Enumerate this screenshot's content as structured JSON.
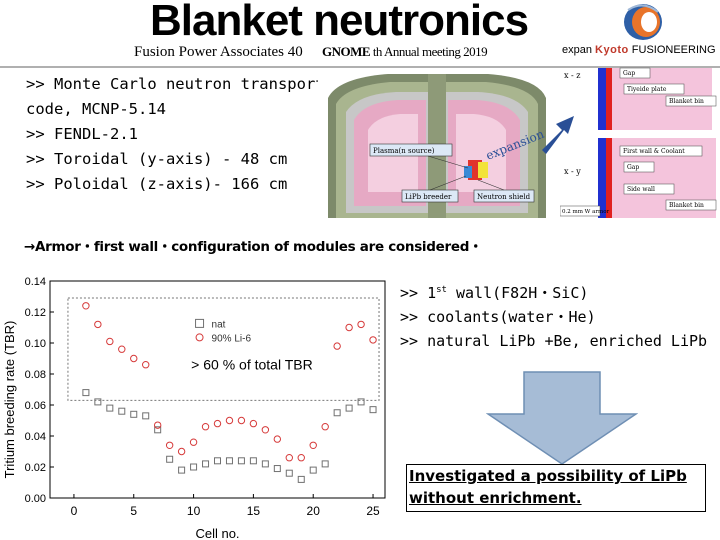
{
  "header": {
    "title": "Blanket neutronics",
    "subtitle": "Fusion Power Associates 40",
    "subtitle_overlay": "th Annual meeting 2019",
    "overlay_tag": "GNOME",
    "expan_label": "expan"
  },
  "logo": {
    "brand_k": "Kyoto",
    "brand_rest": "FUSIONEERING"
  },
  "bullets_top": [
    ">>  Monte Carlo neutron transport",
    "code, MCNP-5.14",
    ">>  FENDL-2.1",
    ">>  Toroidal (y-axis) - 48 cm",
    ">>  Poloidal (z-axis)- 166 cm"
  ],
  "reactor": {
    "plasma_label": "Plasma(n source)",
    "breeder_label": "LiPb breeder",
    "shield_label": "Neutron shield",
    "expansion_label": "expansion"
  },
  "schematic": {
    "xz_label": "x - z",
    "xy_label": "x - y",
    "gap_label": "Gap",
    "tiyeide_label": "Tiyeide plate",
    "blanket_label": "Blanket bin",
    "firstwall_label": "First wall & Coolant",
    "gap2_label": "Gap",
    "sidewall_label": "Side wall",
    "blanket2_label": "Blanket bin",
    "armor_label": "0.2 mm W armor"
  },
  "armor_line": "→Armor・first wall・configuration of modules are considered・",
  "bullets_right": [
    {
      "prefix": ">>  1",
      "sup": "st",
      "text": " wall(F82H・SiC)"
    },
    {
      "prefix": ">>  coolants(water・He)",
      "sup": "",
      "text": ""
    },
    {
      "prefix": ">>  natural LiPb +Be, enriched LiPb",
      "sup": "",
      "text": ""
    }
  ],
  "conclusion": [
    "Investigated a possibility of LiPb",
    "without enrichment."
  ],
  "chart_data": {
    "type": "scatter",
    "ylabel": "Tritium breeding rate (TBR)",
    "xlabel": "Cell no.",
    "ylim": [
      0,
      0.14
    ],
    "xlim": [
      -2,
      26
    ],
    "xticks": [
      0,
      5,
      10,
      15,
      20,
      25
    ],
    "yticks": [
      0.0,
      0.02,
      0.04,
      0.06,
      0.08,
      0.1,
      0.12,
      0.14
    ],
    "annotation": "> 60 % of total TBR",
    "series": [
      {
        "name": "nat",
        "color": "#707070",
        "x": [
          1,
          2,
          3,
          4,
          5,
          6,
          7,
          8,
          9,
          10,
          11,
          12,
          13,
          14,
          15,
          16,
          17,
          18,
          19,
          20,
          21,
          22,
          23,
          24,
          25
        ],
        "y": [
          0.068,
          0.062,
          0.058,
          0.056,
          0.054,
          0.053,
          0.044,
          0.025,
          0.018,
          0.02,
          0.022,
          0.024,
          0.024,
          0.024,
          0.024,
          0.022,
          0.019,
          0.016,
          0.012,
          0.018,
          0.022,
          0.055,
          0.058,
          0.062,
          0.057
        ]
      },
      {
        "name": "90% Li-6",
        "color": "#d63a3a",
        "x": [
          1,
          2,
          3,
          4,
          5,
          6,
          7,
          8,
          9,
          10,
          11,
          12,
          13,
          14,
          15,
          16,
          17,
          18,
          19,
          20,
          21,
          22,
          23,
          24,
          25
        ],
        "y": [
          0.124,
          0.112,
          0.101,
          0.096,
          0.09,
          0.086,
          0.047,
          0.034,
          0.03,
          0.036,
          0.046,
          0.048,
          0.05,
          0.05,
          0.048,
          0.044,
          0.038,
          0.026,
          0.026,
          0.034,
          0.046,
          0.098,
          0.11,
          0.112,
          0.102
        ]
      }
    ]
  }
}
